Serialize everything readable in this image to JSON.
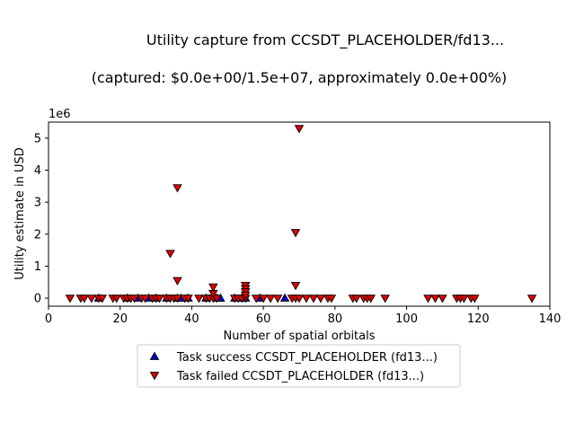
{
  "chart_data": {
    "type": "scatter",
    "title": "Utility capture from CCSDT_PLACEHOLDER/fd13...",
    "subtitle": "(captured: $0.0e+00/1.5e+07, approximately 0.0e+00%)",
    "xlabel": "Number of spatial orbitals",
    "ylabel": "Utility estimate in USD",
    "y_offset_label": "1e6",
    "xlim": [
      0,
      140
    ],
    "ylim": [
      -250000,
      5500000
    ],
    "x_ticks": [
      0,
      20,
      40,
      60,
      80,
      100,
      120,
      140
    ],
    "y_ticks": [
      0,
      1000000,
      2000000,
      3000000,
      4000000,
      5000000
    ],
    "y_tick_labels": [
      "0",
      "1",
      "2",
      "3",
      "4",
      "5"
    ],
    "grid": false,
    "legend_position": "bottom-center",
    "series": [
      {
        "name": "Task success CCSDT_PLACEHOLDER (fd13...)",
        "marker": "triangle-up",
        "color": "#0000cc",
        "points": [
          [
            14,
            0
          ],
          [
            22,
            0
          ],
          [
            25,
            0
          ],
          [
            28,
            0
          ],
          [
            30,
            0
          ],
          [
            33,
            0
          ],
          [
            36,
            0
          ],
          [
            37,
            0
          ],
          [
            39,
            0
          ],
          [
            44,
            0
          ],
          [
            47,
            0
          ],
          [
            48,
            0
          ],
          [
            52,
            0
          ],
          [
            54,
            0
          ],
          [
            55,
            0
          ],
          [
            59,
            0
          ],
          [
            66,
            0
          ]
        ]
      },
      {
        "name": "Task failed CCSDT_PLACEHOLDER (fd13...)",
        "marker": "triangle-down",
        "color": "#e00000",
        "points": [
          [
            6,
            0
          ],
          [
            9,
            0
          ],
          [
            10,
            0
          ],
          [
            12,
            0
          ],
          [
            14,
            0
          ],
          [
            15,
            0
          ],
          [
            18,
            0
          ],
          [
            19,
            0
          ],
          [
            21,
            0
          ],
          [
            22,
            0
          ],
          [
            23,
            0
          ],
          [
            24,
            0
          ],
          [
            26,
            0
          ],
          [
            27,
            0
          ],
          [
            29,
            0
          ],
          [
            30,
            0
          ],
          [
            31,
            0
          ],
          [
            33,
            0
          ],
          [
            34,
            0
          ],
          [
            35,
            0
          ],
          [
            36,
            0
          ],
          [
            38,
            0
          ],
          [
            39,
            0
          ],
          [
            42,
            0
          ],
          [
            44,
            0
          ],
          [
            45,
            0
          ],
          [
            46,
            0
          ],
          [
            47,
            0
          ],
          [
            52,
            0
          ],
          [
            53,
            0
          ],
          [
            54,
            0
          ],
          [
            55,
            0
          ],
          [
            58,
            0
          ],
          [
            60,
            0
          ],
          [
            62,
            0
          ],
          [
            64,
            0
          ],
          [
            68,
            0
          ],
          [
            69,
            0
          ],
          [
            70,
            0
          ],
          [
            72,
            0
          ],
          [
            74,
            0
          ],
          [
            76,
            0
          ],
          [
            78,
            0
          ],
          [
            79,
            0
          ],
          [
            85,
            0
          ],
          [
            86,
            0
          ],
          [
            88,
            0
          ],
          [
            89,
            0
          ],
          [
            90,
            0
          ],
          [
            94,
            0
          ],
          [
            106,
            0
          ],
          [
            108,
            0
          ],
          [
            110,
            0
          ],
          [
            114,
            0
          ],
          [
            115,
            0
          ],
          [
            116,
            0
          ],
          [
            118,
            0
          ],
          [
            119,
            0
          ],
          [
            135,
            0
          ],
          [
            34,
            1400000
          ],
          [
            36,
            3450000
          ],
          [
            36,
            550000
          ],
          [
            46,
            350000
          ],
          [
            46,
            150000
          ],
          [
            55,
            400000
          ],
          [
            55,
            300000
          ],
          [
            55,
            200000
          ],
          [
            55,
            100000
          ],
          [
            69,
            2050000
          ],
          [
            69,
            400000
          ],
          [
            70,
            5300000
          ]
        ]
      }
    ]
  }
}
